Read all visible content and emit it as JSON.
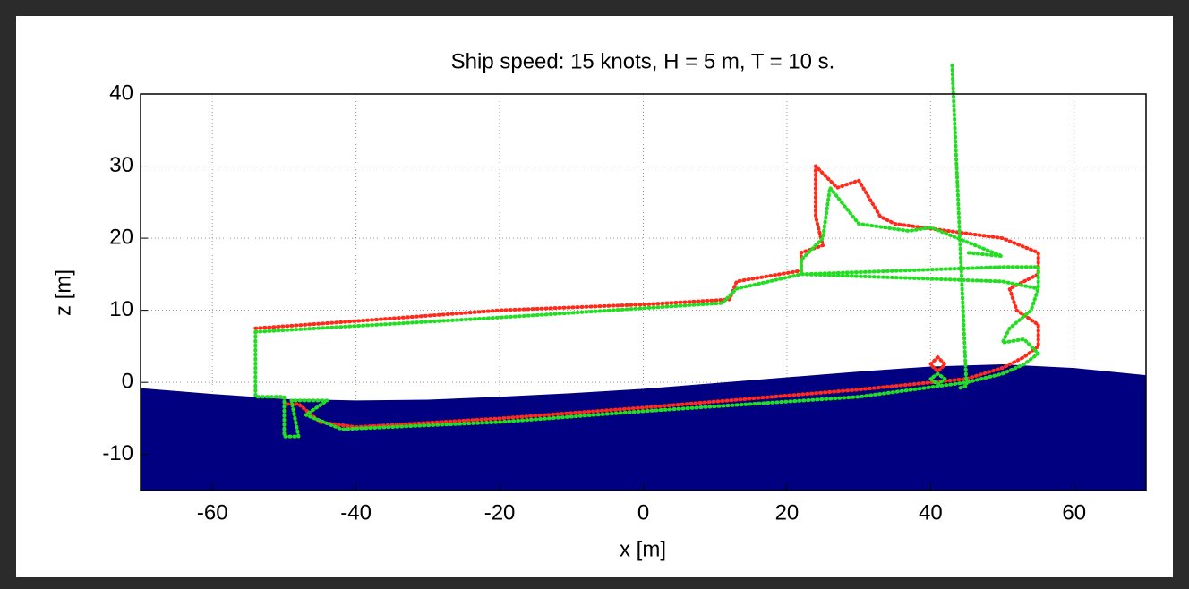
{
  "chart_data": {
    "type": "line",
    "title": "Ship speed: 15 knots, H = 5 m, T = 10 s.",
    "x_label": "x [m]",
    "y_label": "z [m]",
    "xlim": [
      -70,
      70
    ],
    "ylim": [
      -15,
      40
    ],
    "xticks": [
      -60,
      -40,
      -20,
      0,
      20,
      40,
      60
    ],
    "yticks": [
      -10,
      0,
      10,
      20,
      30,
      40
    ],
    "grid": true,
    "series": [
      {
        "type": "area",
        "color": "#000080",
        "x": [
          -70,
          -60,
          -50,
          -40,
          -30,
          -20,
          -10,
          0,
          10,
          20,
          30,
          40,
          50,
          60,
          70
        ],
        "values": [
          -0.8,
          -1.6,
          -2.3,
          -2.5,
          -2.4,
          -2.0,
          -1.5,
          -0.9,
          -0.1,
          0.7,
          1.5,
          2.2,
          2.5,
          2.0,
          1.0
        ]
      },
      {
        "type": "line",
        "color": "#ff2a1a",
        "x": [
          -54,
          -40,
          -20,
          0,
          12,
          13,
          22,
          22,
          25,
          24,
          24,
          27,
          30,
          33,
          35,
          50,
          55,
          55,
          51,
          52,
          55,
          55,
          53,
          50,
          45,
          30,
          0,
          -20,
          -40,
          -45,
          -48,
          -50,
          null,
          41,
          40,
          41,
          42,
          41
        ],
        "values": [
          7.5,
          8.5,
          10,
          10.8,
          11.5,
          14,
          15.5,
          18,
          19,
          23,
          30,
          27,
          28,
          23,
          22,
          20,
          18,
          15,
          13,
          10,
          8,
          5,
          3.5,
          2,
          0.5,
          -1,
          -3.5,
          -5,
          -6.2,
          -5.5,
          -3,
          -3,
          null,
          3.5,
          2.5,
          1.5,
          2.5,
          3.5
        ]
      },
      {
        "type": "line",
        "color": "#22dd22",
        "x": [
          -54,
          -54,
          -50,
          -50,
          -48,
          -49,
          -44,
          -47,
          -42,
          -20,
          0,
          30,
          45,
          50,
          53,
          55,
          53,
          50,
          51,
          54,
          55,
          55,
          50,
          22,
          22,
          25,
          26,
          30,
          37,
          40,
          50,
          45,
          null,
          -54,
          -20,
          11,
          13,
          22,
          50,
          55,
          null,
          41,
          40,
          41,
          42,
          41,
          null,
          43,
          45,
          44
        ],
        "values": [
          7,
          -2,
          -2,
          -7.5,
          -7.5,
          -2.5,
          -2.5,
          -4.5,
          -6.5,
          -5.5,
          -4,
          -2,
          0,
          1.2,
          2.5,
          4,
          6,
          5.5,
          7.5,
          10,
          13,
          16,
          16,
          15,
          17,
          20,
          27,
          22,
          21,
          21.5,
          17.5,
          18,
          null,
          7,
          9,
          11,
          13,
          15,
          14,
          13,
          null,
          1.2,
          0.5,
          -0.3,
          0.5,
          1.2,
          null,
          44,
          -0.5,
          -0.8
        ]
      }
    ]
  }
}
